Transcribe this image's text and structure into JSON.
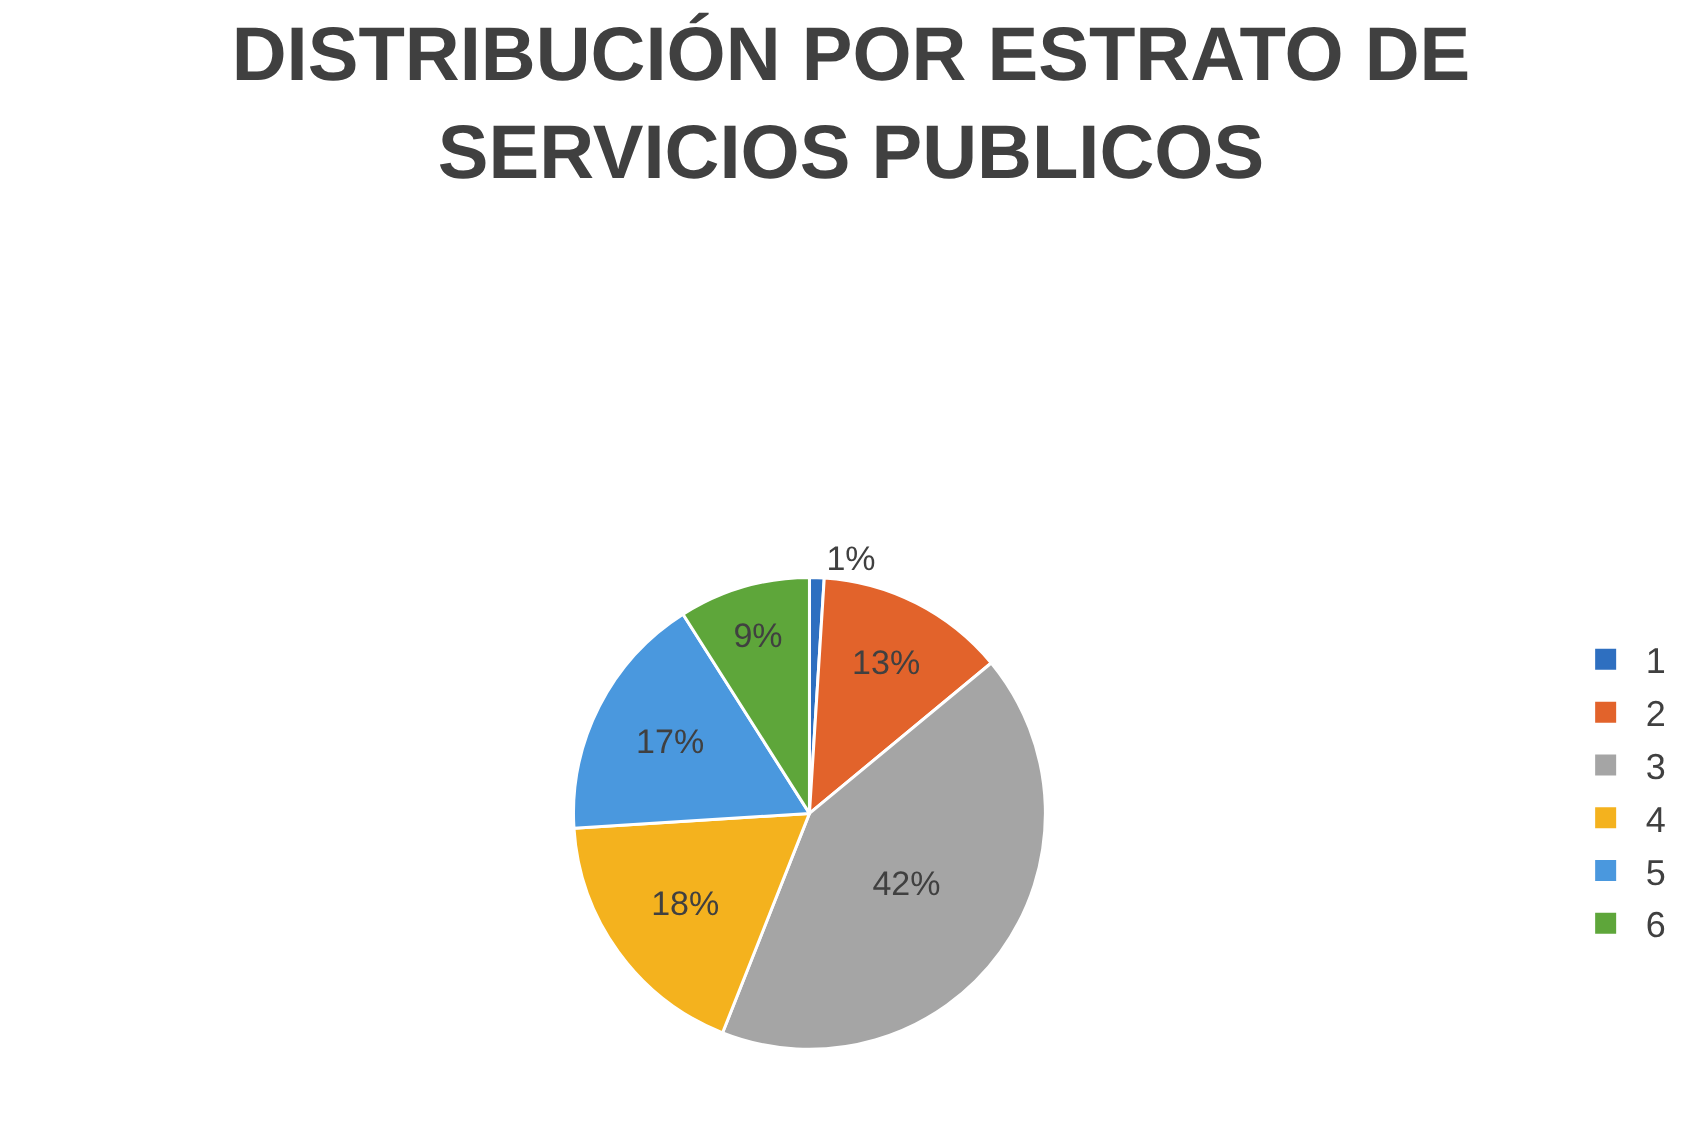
{
  "chart_data": {
    "type": "pie",
    "title": "DISTRIBUCIÓN POR ESTRATO DE\nSERVICIOS PUBLICOS",
    "categories": [
      "1",
      "2",
      "3",
      "4",
      "5",
      "6"
    ],
    "values": [
      1,
      13,
      42,
      18,
      17,
      9
    ],
    "colors": [
      "#2e6fc0",
      "#e2632b",
      "#a5a5a5",
      "#f4b21e",
      "#4a98de",
      "#5ea63a"
    ],
    "value_labels": [
      "1%",
      "13%",
      "42%",
      "18%",
      "17%",
      "9%"
    ],
    "legend": "right"
  }
}
